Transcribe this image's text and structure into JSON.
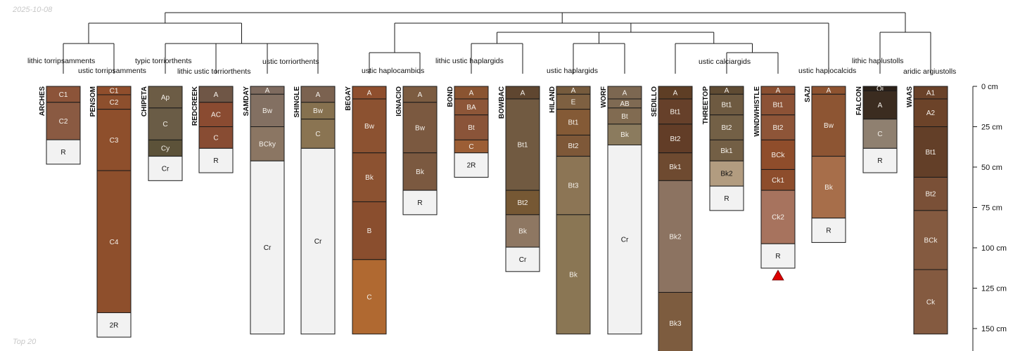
{
  "header": {
    "date": "2025-10-08"
  },
  "footer": {
    "caption": "Top 20"
  },
  "colors": {
    "frame": "#1a1a1a",
    "marker": "#dd0000",
    "background": "#ffffff"
  },
  "chart_data": {
    "type": "soil-profile-sketch-with-dendrogram",
    "depth_axis": {
      "unit": "cm",
      "ticks": [
        0,
        25,
        50,
        75,
        100,
        125,
        150
      ],
      "tick_labels": [
        "0 cm",
        "25 cm",
        "50 cm",
        "75 cm",
        "100 cm",
        "125 cm",
        "150 cm"
      ],
      "range": [
        0,
        166
      ]
    },
    "profiles": [
      {
        "id": "ARCHES",
        "horizons": [
          {
            "name": "C1",
            "top": 0,
            "bottom": 9.9,
            "color": "#8c5439"
          },
          {
            "name": "C2",
            "top": 9.9,
            "bottom": 33.1,
            "color": "#8a5a42"
          },
          {
            "name": "R",
            "top": 33.1,
            "bottom": 48.2,
            "color": "#f2f2f2"
          }
        ]
      },
      {
        "id": "PENSOM",
        "horizons": [
          {
            "name": "C1",
            "top": 0,
            "bottom": 5.2,
            "color": "#904e2c"
          },
          {
            "name": "C2",
            "top": 5.2,
            "bottom": 14.2,
            "color": "#8d4f2d"
          },
          {
            "name": "C3",
            "top": 14.2,
            "bottom": 52.2,
            "color": "#8e4f2c"
          },
          {
            "name": "C4",
            "top": 52.2,
            "bottom": 140.2,
            "color": "#8e4f2c"
          },
          {
            "name": "2R",
            "top": 140.2,
            "bottom": 155.3,
            "color": "#f2f2f2"
          }
        ]
      },
      {
        "id": "CHIPETA",
        "horizons": [
          {
            "name": "Ap",
            "top": 0,
            "bottom": 13.4,
            "color": "#6c5c45"
          },
          {
            "name": "C",
            "top": 13.4,
            "bottom": 33.2,
            "color": "#6a5c46"
          },
          {
            "name": "Cy",
            "top": 33.2,
            "bottom": 43.3,
            "color": "#5c5239"
          },
          {
            "name": "Cr",
            "top": 43.3,
            "bottom": 58.4,
            "color": "#f2f2f2"
          }
        ]
      },
      {
        "id": "REDCREEK",
        "horizons": [
          {
            "name": "A",
            "top": 0,
            "bottom": 9.9,
            "color": "#6f5646"
          },
          {
            "name": "AC",
            "top": 9.9,
            "bottom": 25.0,
            "color": "#8a4b31"
          },
          {
            "name": "C",
            "top": 25.0,
            "bottom": 38.4,
            "color": "#884c33"
          },
          {
            "name": "R",
            "top": 38.4,
            "bottom": 53.5,
            "color": "#f2f2f2"
          }
        ]
      },
      {
        "id": "SAMDAY",
        "horizons": [
          {
            "name": "A",
            "top": 0,
            "bottom": 4.9,
            "color": "#7e6b5f"
          },
          {
            "name": "Bw",
            "top": 4.9,
            "bottom": 25.0,
            "color": "#837062"
          },
          {
            "name": "BCky",
            "top": 25.0,
            "bottom": 46.2,
            "color": "#8b7663"
          },
          {
            "name": "Cr",
            "top": 46.2,
            "bottom": 153.4,
            "color": "#f2f2f2"
          }
        ]
      },
      {
        "id": "SHINGLE",
        "horizons": [
          {
            "name": "A",
            "top": 0,
            "bottom": 9.9,
            "color": "#7b6250"
          },
          {
            "name": "Bw",
            "top": 9.9,
            "bottom": 20.3,
            "color": "#86714f"
          },
          {
            "name": "C",
            "top": 20.3,
            "bottom": 38.4,
            "color": "#8a7452"
          },
          {
            "name": "Cr",
            "top": 38.4,
            "bottom": 153.4,
            "color": "#f2f2f2"
          }
        ]
      },
      {
        "id": "BEGAY",
        "horizons": [
          {
            "name": "A",
            "top": 0,
            "bottom": 7.8,
            "color": "#8f4f2e"
          },
          {
            "name": "Bw",
            "top": 7.8,
            "bottom": 41.2,
            "color": "#8c5231"
          },
          {
            "name": "Bk",
            "top": 41.2,
            "bottom": 71.5,
            "color": "#8c5231"
          },
          {
            "name": "B",
            "top": 71.5,
            "bottom": 107.3,
            "color": "#8a4e2e"
          },
          {
            "name": "C",
            "top": 107.3,
            "bottom": 153.4,
            "color": "#b06931"
          }
        ]
      },
      {
        "id": "IGNACIO",
        "horizons": [
          {
            "name": "A",
            "top": 0,
            "bottom": 9.9,
            "color": "#7c5c41"
          },
          {
            "name": "Bw",
            "top": 9.9,
            "bottom": 41.2,
            "color": "#7b5940"
          },
          {
            "name": "Bk",
            "top": 41.2,
            "bottom": 64.4,
            "color": "#7b5940"
          },
          {
            "name": "R",
            "top": 64.4,
            "bottom": 79.5,
            "color": "#f2f2f2"
          }
        ]
      },
      {
        "id": "BOND",
        "horizons": [
          {
            "name": "A",
            "top": 0,
            "bottom": 7.8,
            "color": "#8a5431"
          },
          {
            "name": "BA",
            "top": 7.8,
            "bottom": 17.7,
            "color": "#8d5638"
          },
          {
            "name": "Bt",
            "top": 17.7,
            "bottom": 33.2,
            "color": "#8a5439"
          },
          {
            "name": "C",
            "top": 33.2,
            "bottom": 41.2,
            "color": "#9c5e35"
          },
          {
            "name": "2R",
            "top": 41.2,
            "bottom": 56.3,
            "color": "#f2f2f2"
          }
        ]
      },
      {
        "id": "BOWBAC",
        "horizons": [
          {
            "name": "A",
            "top": 0,
            "bottom": 7.8,
            "color": "#5f4630"
          },
          {
            "name": "Bt1",
            "top": 7.8,
            "bottom": 64.4,
            "color": "#715a41"
          },
          {
            "name": "Bt2",
            "top": 64.4,
            "bottom": 79.5,
            "color": "#765834"
          },
          {
            "name": "Bk",
            "top": 79.5,
            "bottom": 99.6,
            "color": "#8e7762"
          },
          {
            "name": "Cr",
            "top": 99.6,
            "bottom": 114.7,
            "color": "#f2f2f2"
          }
        ]
      },
      {
        "id": "HILAND",
        "horizons": [
          {
            "name": "A",
            "top": 0,
            "bottom": 4.9,
            "color": "#765b3d"
          },
          {
            "name": "E",
            "top": 4.9,
            "bottom": 14.2,
            "color": "#7e6041"
          },
          {
            "name": "Bt1",
            "top": 14.2,
            "bottom": 30.2,
            "color": "#845a36"
          },
          {
            "name": "Bt2",
            "top": 30.2,
            "bottom": 43.3,
            "color": "#7e5838"
          },
          {
            "name": "Bt3",
            "top": 43.3,
            "bottom": 79.5,
            "color": "#8c7555"
          },
          {
            "name": "Bk",
            "top": 79.5,
            "bottom": 153.4,
            "color": "#8a7654"
          }
        ]
      },
      {
        "id": "WORF",
        "horizons": [
          {
            "name": "A",
            "top": 0,
            "bottom": 7.8,
            "color": "#7c6751"
          },
          {
            "name": "AB",
            "top": 7.8,
            "bottom": 13.4,
            "color": "#7f6a53"
          },
          {
            "name": "Bt",
            "top": 13.4,
            "bottom": 23.4,
            "color": "#816b51"
          },
          {
            "name": "Bk",
            "top": 23.4,
            "bottom": 36.3,
            "color": "#8b7b5e"
          },
          {
            "name": "Cr",
            "top": 36.3,
            "bottom": 153.4,
            "color": "#f2f2f2"
          }
        ]
      },
      {
        "id": "SEDILLO",
        "horizons": [
          {
            "name": "A",
            "top": 0,
            "bottom": 7.8,
            "color": "#5e3e25"
          },
          {
            "name": "Bt1",
            "top": 7.8,
            "bottom": 23.4,
            "color": "#66402a"
          },
          {
            "name": "Bt2",
            "top": 23.4,
            "bottom": 41.2,
            "color": "#623d27"
          },
          {
            "name": "Bk1",
            "top": 41.2,
            "bottom": 58.4,
            "color": "#6e4a30"
          },
          {
            "name": "Bk2",
            "top": 58.4,
            "bottom": 127.6,
            "color": "#8c7361"
          },
          {
            "name": "Bk3",
            "top": 127.6,
            "bottom": 166.0,
            "color": "#7d5c3f"
          }
        ]
      },
      {
        "id": "THREETOP",
        "horizons": [
          {
            "name": "A",
            "top": 0,
            "bottom": 4.9,
            "color": "#5f4b33"
          },
          {
            "name": "Bt1",
            "top": 4.9,
            "bottom": 17.7,
            "color": "#6e5a41"
          },
          {
            "name": "Bt2",
            "top": 17.7,
            "bottom": 33.2,
            "color": "#736046"
          },
          {
            "name": "Bk1",
            "top": 33.2,
            "bottom": 46.2,
            "color": "#735f45"
          },
          {
            "name": "Bk2",
            "top": 46.2,
            "bottom": 61.8,
            "color": "#b29c80"
          },
          {
            "name": "R",
            "top": 61.8,
            "bottom": 76.9,
            "color": "#f2f2f2"
          }
        ]
      },
      {
        "id": "WINDWHISTLE",
        "horizons": [
          {
            "name": "A",
            "top": 0,
            "bottom": 4.9,
            "color": "#8a4f31"
          },
          {
            "name": "Bt1",
            "top": 4.9,
            "bottom": 17.7,
            "color": "#8c5236"
          },
          {
            "name": "Bt2",
            "top": 17.7,
            "bottom": 33.2,
            "color": "#8e5538"
          },
          {
            "name": "BCk",
            "top": 33.2,
            "bottom": 51.5,
            "color": "#8f4d2b"
          },
          {
            "name": "Ck1",
            "top": 51.5,
            "bottom": 64.4,
            "color": "#8d4d2c"
          },
          {
            "name": "Ck2",
            "top": 64.4,
            "bottom": 97.5,
            "color": "#a7735e"
          },
          {
            "name": "R",
            "top": 97.5,
            "bottom": 112.6,
            "color": "#f2f2f2"
          }
        ]
      },
      {
        "id": "SAZI",
        "horizons": [
          {
            "name": "A",
            "top": 0,
            "bottom": 4.9,
            "color": "#8e5330"
          },
          {
            "name": "Bw",
            "top": 4.9,
            "bottom": 43.3,
            "color": "#8d5533"
          },
          {
            "name": "Bk",
            "top": 43.3,
            "bottom": 81.6,
            "color": "#a76e4a"
          },
          {
            "name": "R",
            "top": 81.6,
            "bottom": 96.7,
            "color": "#f2f2f2"
          }
        ]
      },
      {
        "id": "FALCON",
        "horizons": [
          {
            "name": "Oi",
            "top": 0,
            "bottom": 2.8,
            "color": "#2c2118"
          },
          {
            "name": "A",
            "top": 2.8,
            "bottom": 20.3,
            "color": "#3b2c20"
          },
          {
            "name": "C",
            "top": 20.3,
            "bottom": 38.4,
            "color": "#8f8070"
          },
          {
            "name": "R",
            "top": 38.4,
            "bottom": 53.5,
            "color": "#f2f2f2"
          }
        ]
      },
      {
        "id": "WAAS",
        "horizons": [
          {
            "name": "A1",
            "top": 0,
            "bottom": 7.8,
            "color": "#6a4229"
          },
          {
            "name": "A2",
            "top": 7.8,
            "bottom": 25.0,
            "color": "#6c4329"
          },
          {
            "name": "Bt1",
            "top": 25.0,
            "bottom": 56.3,
            "color": "#633f28"
          },
          {
            "name": "Bt2",
            "top": 56.3,
            "bottom": 76.9,
            "color": "#7a5037"
          },
          {
            "name": "BCk",
            "top": 76.9,
            "bottom": 113.5,
            "color": "#845a40"
          },
          {
            "name": "Ck",
            "top": 113.5,
            "bottom": 153.4,
            "color": "#845a40"
          }
        ]
      }
    ],
    "bottom_markers": [
      "WINDWHISTLE"
    ],
    "group_labels": [
      {
        "text": "lithic torripsamments",
        "members": [
          "ARCHES",
          "PENSOM"
        ]
      },
      {
        "text": "ustic torripsamments",
        "members": [
          "PENSOM"
        ]
      },
      {
        "text": "typic torriorthents",
        "members": [
          "CHIPETA",
          "REDCREEK"
        ]
      },
      {
        "text": "lithic ustic torriorthents",
        "members": [
          "REDCREEK",
          "SAMDAY"
        ]
      },
      {
        "text": "ustic torriorthents",
        "members": [
          "SAMDAY",
          "SHINGLE"
        ]
      },
      {
        "text": "ustic haplocambids",
        "members": [
          "BEGAY",
          "IGNACIO"
        ]
      },
      {
        "text": "lithic ustic haplargids",
        "members": [
          "BOND",
          "BOWBAC"
        ]
      },
      {
        "text": "ustic haplargids",
        "members": [
          "BOWBAC",
          "HILAND",
          "WORF"
        ]
      },
      {
        "text": "ustic calciargids",
        "members": [
          "SEDILLO",
          "THREETOP",
          "WINDWHISTLE"
        ]
      },
      {
        "text": "ustic haplocalcids",
        "members": [
          "SAZI"
        ]
      },
      {
        "text": "lithic haplustolls",
        "members": [
          "FALCON"
        ]
      },
      {
        "text": "aridic argiustolls",
        "members": [
          "WAAS"
        ]
      }
    ]
  }
}
